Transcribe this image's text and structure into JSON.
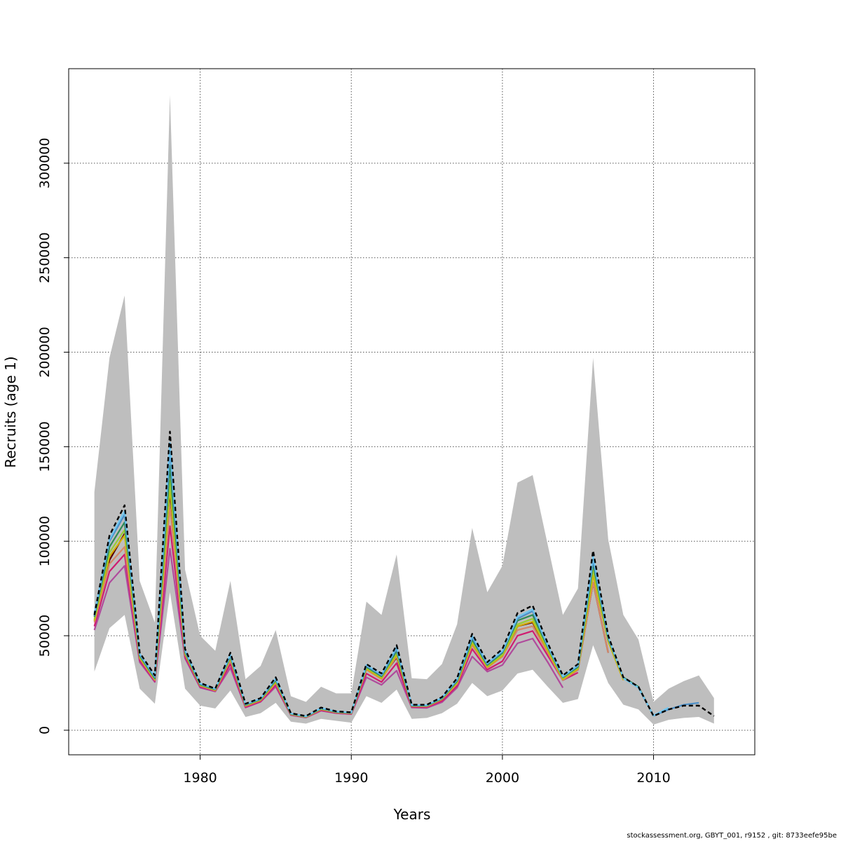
{
  "chart_data": {
    "type": "line",
    "title": "",
    "xlabel": "Years",
    "ylabel": "Recruits (age 1)",
    "xlim": [
      1971.3,
      2016.7
    ],
    "ylim": [
      -13000,
      350000
    ],
    "grid": true,
    "legend": "none",
    "x_ticks": [
      1980,
      1990,
      2000,
      2010
    ],
    "x_tick_labels": [
      "1980",
      "1990",
      "2000",
      "2010"
    ],
    "y_ticks": [
      0,
      50000,
      100000,
      150000,
      200000,
      250000,
      300000
    ],
    "y_tick_labels": [
      "0",
      "50000",
      "100000",
      "150000",
      "200000",
      "250000",
      "300000"
    ],
    "band": {
      "color": "#bebebe",
      "x": [
        1973,
        1974,
        1975,
        1976,
        1977,
        1978,
        1979,
        1980,
        1981,
        1982,
        1983,
        1984,
        1985,
        1986,
        1987,
        1988,
        1989,
        1990,
        1991,
        1992,
        1993,
        1994,
        1995,
        1996,
        1997,
        1998,
        1999,
        2000,
        2001,
        2002,
        2003,
        2004,
        2005,
        2006,
        2007,
        2008,
        2009,
        2010,
        2011,
        2012,
        2013,
        2014
      ],
      "upper": [
        126000,
        197000,
        230000,
        79000,
        57000,
        336000,
        85000,
        50000,
        42000,
        79000,
        27000,
        34000,
        53000,
        18000,
        15000,
        23000,
        19500,
        19500,
        68000,
        61000,
        93000,
        27500,
        27000,
        35000,
        56000,
        107000,
        73000,
        87000,
        131000,
        135000,
        98000,
        61000,
        75000,
        197000,
        101000,
        61000,
        48000,
        15000,
        22000,
        26000,
        29000,
        17000
      ],
      "lower": [
        31000,
        54000,
        61000,
        22000,
        14000,
        73000,
        22000,
        13000,
        11500,
        21000,
        7000,
        9000,
        14500,
        4500,
        3500,
        6000,
        5000,
        4000,
        18000,
        14500,
        21500,
        6000,
        6500,
        9000,
        14000,
        25000,
        18000,
        21000,
        30000,
        32000,
        23000,
        14500,
        16500,
        45000,
        25000,
        13500,
        11000,
        3000,
        5500,
        6500,
        7000,
        3500
      ]
    },
    "series": [
      {
        "color": "#000000",
        "dashed": true,
        "x": [
          1973,
          1974,
          1975,
          1976,
          1977,
          1978,
          1979,
          1980,
          1981,
          1982,
          1983,
          1984,
          1985,
          1986,
          1987,
          1988,
          1989,
          1990,
          1991,
          1992,
          1993,
          1994,
          1995,
          1996,
          1997,
          1998,
          1999,
          2000,
          2001,
          2002,
          2003,
          2004,
          2005,
          2006,
          2007,
          2008,
          2009,
          2010,
          2011,
          2012,
          2013,
          2014
        ],
        "values": [
          61000,
          103000,
          119000,
          41000,
          29000,
          158000,
          43000,
          25000,
          22000,
          41000,
          14000,
          17000,
          28000,
          9000,
          7500,
          12000,
          10000,
          9500,
          35000,
          30000,
          45000,
          13500,
          13500,
          17500,
          27500,
          51000,
          36000,
          43000,
          62000,
          66000,
          46000,
          29000,
          35000,
          95000,
          50000,
          28000,
          23000,
          7500,
          11000,
          13000,
          13000,
          7500
        ]
      },
      {
        "color": "#6ec6f0",
        "dashed": false,
        "x": [
          1973,
          1974,
          1975,
          1976,
          1977,
          1978,
          1979,
          1980,
          1981,
          1982,
          1983,
          1984,
          1985,
          1986,
          1987,
          1988,
          1989,
          1990,
          1991,
          1992,
          1993,
          1994,
          1995,
          1996,
          1997,
          1998,
          1999,
          2000,
          2001,
          2002,
          2003,
          2004,
          2005,
          2006,
          2007,
          2008,
          2009,
          2010,
          2011
        ],
        "values": [
          62000,
          101000,
          116000,
          40500,
          28500,
          152000,
          42500,
          24800,
          22000,
          40000,
          13800,
          16800,
          27500,
          8900,
          7400,
          11800,
          9900,
          9400,
          34500,
          29500,
          44000,
          13300,
          13300,
          17200,
          27000,
          50000,
          35500,
          42000,
          60000,
          64000,
          45000,
          28500,
          34500,
          92000,
          49500,
          27500,
          22500,
          7800,
          12000
        ]
      },
      {
        "color": "#4a8fc8",
        "dashed": false,
        "x": [
          1973,
          1974,
          1975,
          1976,
          1977,
          1978,
          1979,
          1980,
          1981,
          1982,
          1983,
          1984,
          1985,
          1986,
          1987,
          1988,
          1989,
          1990,
          1991,
          1992,
          1993,
          1994,
          1995,
          1996,
          1997,
          1998,
          1999,
          2000,
          2001,
          2002,
          2003,
          2004,
          2005,
          2006,
          2007,
          2008,
          2009,
          2010,
          2011,
          2012,
          2013
        ],
        "values": [
          60500,
          100000,
          114000,
          40000,
          28000,
          148000,
          42000,
          24500,
          21800,
          39500,
          13600,
          16600,
          27000,
          8800,
          7300,
          11600,
          9800,
          9300,
          34000,
          29000,
          43000,
          13200,
          13200,
          17000,
          26500,
          49000,
          35000,
          41500,
          59000,
          63000,
          44500,
          28200,
          34000,
          90000,
          49000,
          27500,
          22500,
          7700,
          11000,
          13500,
          14500
        ]
      },
      {
        "color": "#2e8b57",
        "dashed": false,
        "x": [
          1973,
          1974,
          1975,
          1976,
          1977,
          1978,
          1979,
          1980,
          1981,
          1982,
          1983,
          1984,
          1985,
          1986,
          1987,
          1988,
          1989,
          1990,
          1991,
          1992,
          1993,
          1994,
          1995,
          1996,
          1997,
          1998,
          1999,
          2000,
          2001,
          2002,
          2003,
          2004,
          2005,
          2006,
          2007,
          2008,
          2009,
          2010
        ],
        "values": [
          60000,
          97000,
          110000,
          39500,
          27500,
          140000,
          41500,
          24200,
          21600,
          39000,
          13400,
          16400,
          26500,
          8700,
          7200,
          11500,
          9700,
          9200,
          33500,
          28500,
          42000,
          13000,
          13000,
          16800,
          26000,
          48000,
          34500,
          41000,
          58000,
          61000,
          44000,
          28000,
          33500,
          88000,
          48500,
          28000,
          23000,
          7500
        ]
      },
      {
        "color": "#9acd32",
        "dashed": false,
        "x": [
          1973,
          1974,
          1975,
          1976,
          1977,
          1978,
          1979,
          1980,
          1981,
          1982,
          1983,
          1984,
          1985,
          1986,
          1987,
          1988,
          1989,
          1990,
          1991,
          1992,
          1993,
          1994,
          1995,
          1996,
          1997,
          1998,
          1999,
          2000,
          2001,
          2002,
          2003,
          2004,
          2005,
          2006,
          2007,
          2008,
          2009
        ],
        "values": [
          59000,
          94000,
          106000,
          39000,
          27000,
          132000,
          41000,
          24000,
          21400,
          38500,
          13200,
          16200,
          26000,
          8600,
          7100,
          11300,
          9600,
          9100,
          33000,
          28000,
          41000,
          12900,
          12900,
          16600,
          25500,
          47000,
          34000,
          40000,
          56000,
          59000,
          43000,
          27500,
          33000,
          85000,
          48000,
          27500,
          22500
        ]
      },
      {
        "color": "#d4b000",
        "dashed": false,
        "x": [
          1973,
          1974,
          1975,
          1976,
          1977,
          1978,
          1979,
          1980,
          1981,
          1982,
          1983,
          1984,
          1985,
          1986,
          1987,
          1988,
          1989,
          1990,
          1991,
          1992,
          1993,
          1994,
          1995,
          1996,
          1997,
          1998,
          1999,
          2000,
          2001,
          2002,
          2003,
          2004,
          2005,
          2006,
          2007,
          2008
        ],
        "values": [
          58000,
          92000,
          103000,
          38500,
          26800,
          128000,
          40500,
          23800,
          21200,
          38000,
          13000,
          16000,
          25500,
          8500,
          7000,
          11200,
          9500,
          9000,
          32500,
          27500,
          40000,
          12800,
          12800,
          16500,
          25000,
          46000,
          33500,
          39500,
          55000,
          57500,
          42000,
          27000,
          32500,
          82000,
          47000,
          26500
        ]
      },
      {
        "color": "#d4896a",
        "dashed": false,
        "x": [
          1973,
          1974,
          1975,
          1976,
          1977,
          1978,
          1979,
          1980,
          1981,
          1982,
          1983,
          1984,
          1985,
          1986,
          1987,
          1988,
          1989,
          1990,
          1991,
          1992,
          1993,
          1994,
          1995,
          1996,
          1997,
          1998,
          1999,
          2000,
          2001,
          2002,
          2003,
          2004,
          2005,
          2006,
          2007
        ],
        "values": [
          57000,
          88000,
          97000,
          38000,
          26500,
          118000,
          40000,
          23500,
          21000,
          37000,
          12800,
          15800,
          25000,
          8400,
          6900,
          11000,
          9400,
          8900,
          32000,
          27000,
          39000,
          12700,
          12600,
          16300,
          24500,
          45000,
          33000,
          39000,
          53000,
          55000,
          41000,
          26500,
          32000,
          78000,
          41000
        ]
      },
      {
        "color": "#5c0000",
        "dashed": false,
        "x": [
          1973,
          1974,
          1975,
          1976,
          1977,
          1978,
          1979,
          1980,
          1981,
          1982,
          1983,
          1984,
          1985,
          1986,
          1987,
          1988,
          1989,
          1990,
          1991,
          1992,
          1993,
          1994,
          1995,
          1996,
          1997,
          1998,
          1999,
          2000,
          2001,
          2002,
          2003,
          2004,
          2005,
          2006,
          2007
        ],
        "values": [
          58000,
          90000,
          104000,
          38000,
          27000,
          126000,
          40000,
          23500,
          21200,
          37000,
          13000,
          16000,
          25500,
          8400,
          7000,
          11000,
          9400,
          9000,
          32500,
          27500,
          38500,
          12800,
          12700,
          16300,
          25000,
          46000,
          33500,
          39000,
          55000,
          57000,
          42000,
          26500,
          32000,
          78000,
          41000
        ]
      },
      {
        "color": "#d01c70",
        "dashed": false,
        "x": [
          1973,
          1974,
          1975,
          1976,
          1977,
          1978,
          1979,
          1980,
          1981,
          1982,
          1983,
          1984,
          1985,
          1986,
          1987,
          1988,
          1989,
          1990,
          1991,
          1992,
          1993,
          1994,
          1995,
          1996,
          1997,
          1998,
          1999,
          2000,
          2001,
          2002,
          2003,
          2004,
          2005
        ],
        "values": [
          55000,
          84000,
          93000,
          37000,
          26000,
          108000,
          39000,
          23000,
          20800,
          35000,
          12300,
          15300,
          24000,
          8200,
          6800,
          10600,
          9200,
          8700,
          30000,
          25500,
          35500,
          12300,
          12200,
          15500,
          23500,
          43000,
          32000,
          36500,
          50000,
          52500,
          39500,
          26500,
          30500
        ]
      },
      {
        "color": "#b04a9c",
        "dashed": false,
        "x": [
          1973,
          1974,
          1975,
          1976,
          1977,
          1978,
          1979,
          1980,
          1981,
          1982,
          1983,
          1984,
          1985,
          1986,
          1987,
          1988,
          1989,
          1990,
          1991,
          1992,
          1993,
          1994,
          1995,
          1996,
          1997,
          1998,
          1999,
          2000,
          2001,
          2002,
          2003,
          2004
        ],
        "values": [
          53000,
          78000,
          87000,
          36000,
          25500,
          96000,
          38000,
          22500,
          20500,
          33000,
          12000,
          15000,
          23000,
          8000,
          6700,
          10300,
          9000,
          8500,
          28000,
          24000,
          31500,
          12000,
          11800,
          14800,
          22500,
          39000,
          31000,
          34500,
          46000,
          48500,
          36000,
          22500
        ]
      }
    ]
  },
  "footer": {
    "note": "stockassessment.org, GBYT_001, r9152 , git: 8733eefe95be"
  }
}
